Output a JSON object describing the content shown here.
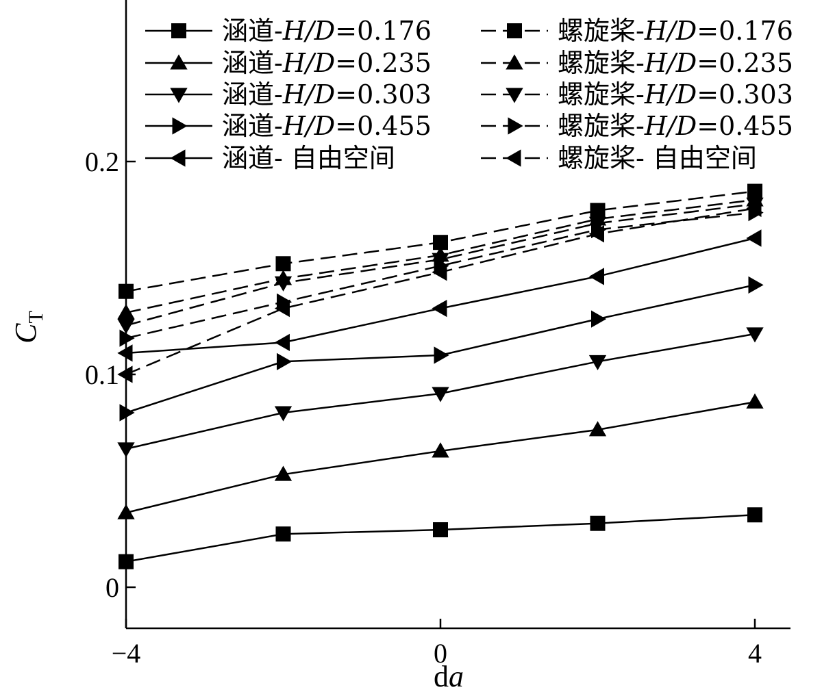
{
  "chart_data": {
    "type": "line",
    "title": "",
    "xlabel": "da",
    "ylabel": "CT",
    "xlim": [
      -4.0,
      4.5
    ],
    "ylim": [
      -0.02,
      0.25
    ],
    "xticks": [
      -4,
      0,
      4
    ],
    "xtick_labels": [
      "−4",
      "0",
      "4"
    ],
    "yticks": [
      0,
      0.1,
      0.2
    ],
    "ytick_labels": [
      "0",
      "0.1",
      "0.2"
    ],
    "grid": false,
    "legend_placement": "top",
    "x": [
      -4,
      -2,
      0,
      2,
      4
    ],
    "series": [
      {
        "name": "涵道-H/D=0.176",
        "style": "solid",
        "marker": "square",
        "values": [
          0.012,
          0.025,
          0.027,
          0.03,
          0.034
        ]
      },
      {
        "name": "涵道-H/D=0.235",
        "style": "solid",
        "marker": "triangle-up",
        "values": [
          0.035,
          0.053,
          0.064,
          0.074,
          0.087
        ]
      },
      {
        "name": "涵道-H/D=0.303",
        "style": "solid",
        "marker": "triangle-down",
        "values": [
          0.065,
          0.082,
          0.091,
          0.106,
          0.119
        ]
      },
      {
        "name": "涵道-H/D=0.455",
        "style": "solid",
        "marker": "triangle-right",
        "values": [
          0.082,
          0.106,
          0.109,
          0.126,
          0.142
        ]
      },
      {
        "name": "涵道- 自由空间",
        "style": "solid",
        "marker": "triangle-left",
        "values": [
          0.11,
          0.115,
          0.131,
          0.146,
          0.164
        ]
      },
      {
        "name": "螺旋桨-H/D=0.176",
        "style": "dashed",
        "marker": "square",
        "values": [
          0.139,
          0.152,
          0.162,
          0.177,
          0.186
        ]
      },
      {
        "name": "螺旋桨-H/D=0.235",
        "style": "dashed",
        "marker": "triangle-up",
        "values": [
          0.129,
          0.145,
          0.156,
          0.173,
          0.182
        ]
      },
      {
        "name": "螺旋桨-H/D=0.303",
        "style": "dashed",
        "marker": "triangle-down",
        "values": [
          0.123,
          0.143,
          0.154,
          0.171,
          0.18
        ]
      },
      {
        "name": "螺旋桨-H/D=0.455",
        "style": "dashed",
        "marker": "triangle-right",
        "values": [
          0.117,
          0.134,
          0.151,
          0.168,
          0.176
        ]
      },
      {
        "name": "螺旋桨- 自由空间",
        "style": "dashed",
        "marker": "triangle-left",
        "values": [
          0.1,
          0.131,
          0.148,
          0.166,
          0.178
        ]
      }
    ]
  }
}
